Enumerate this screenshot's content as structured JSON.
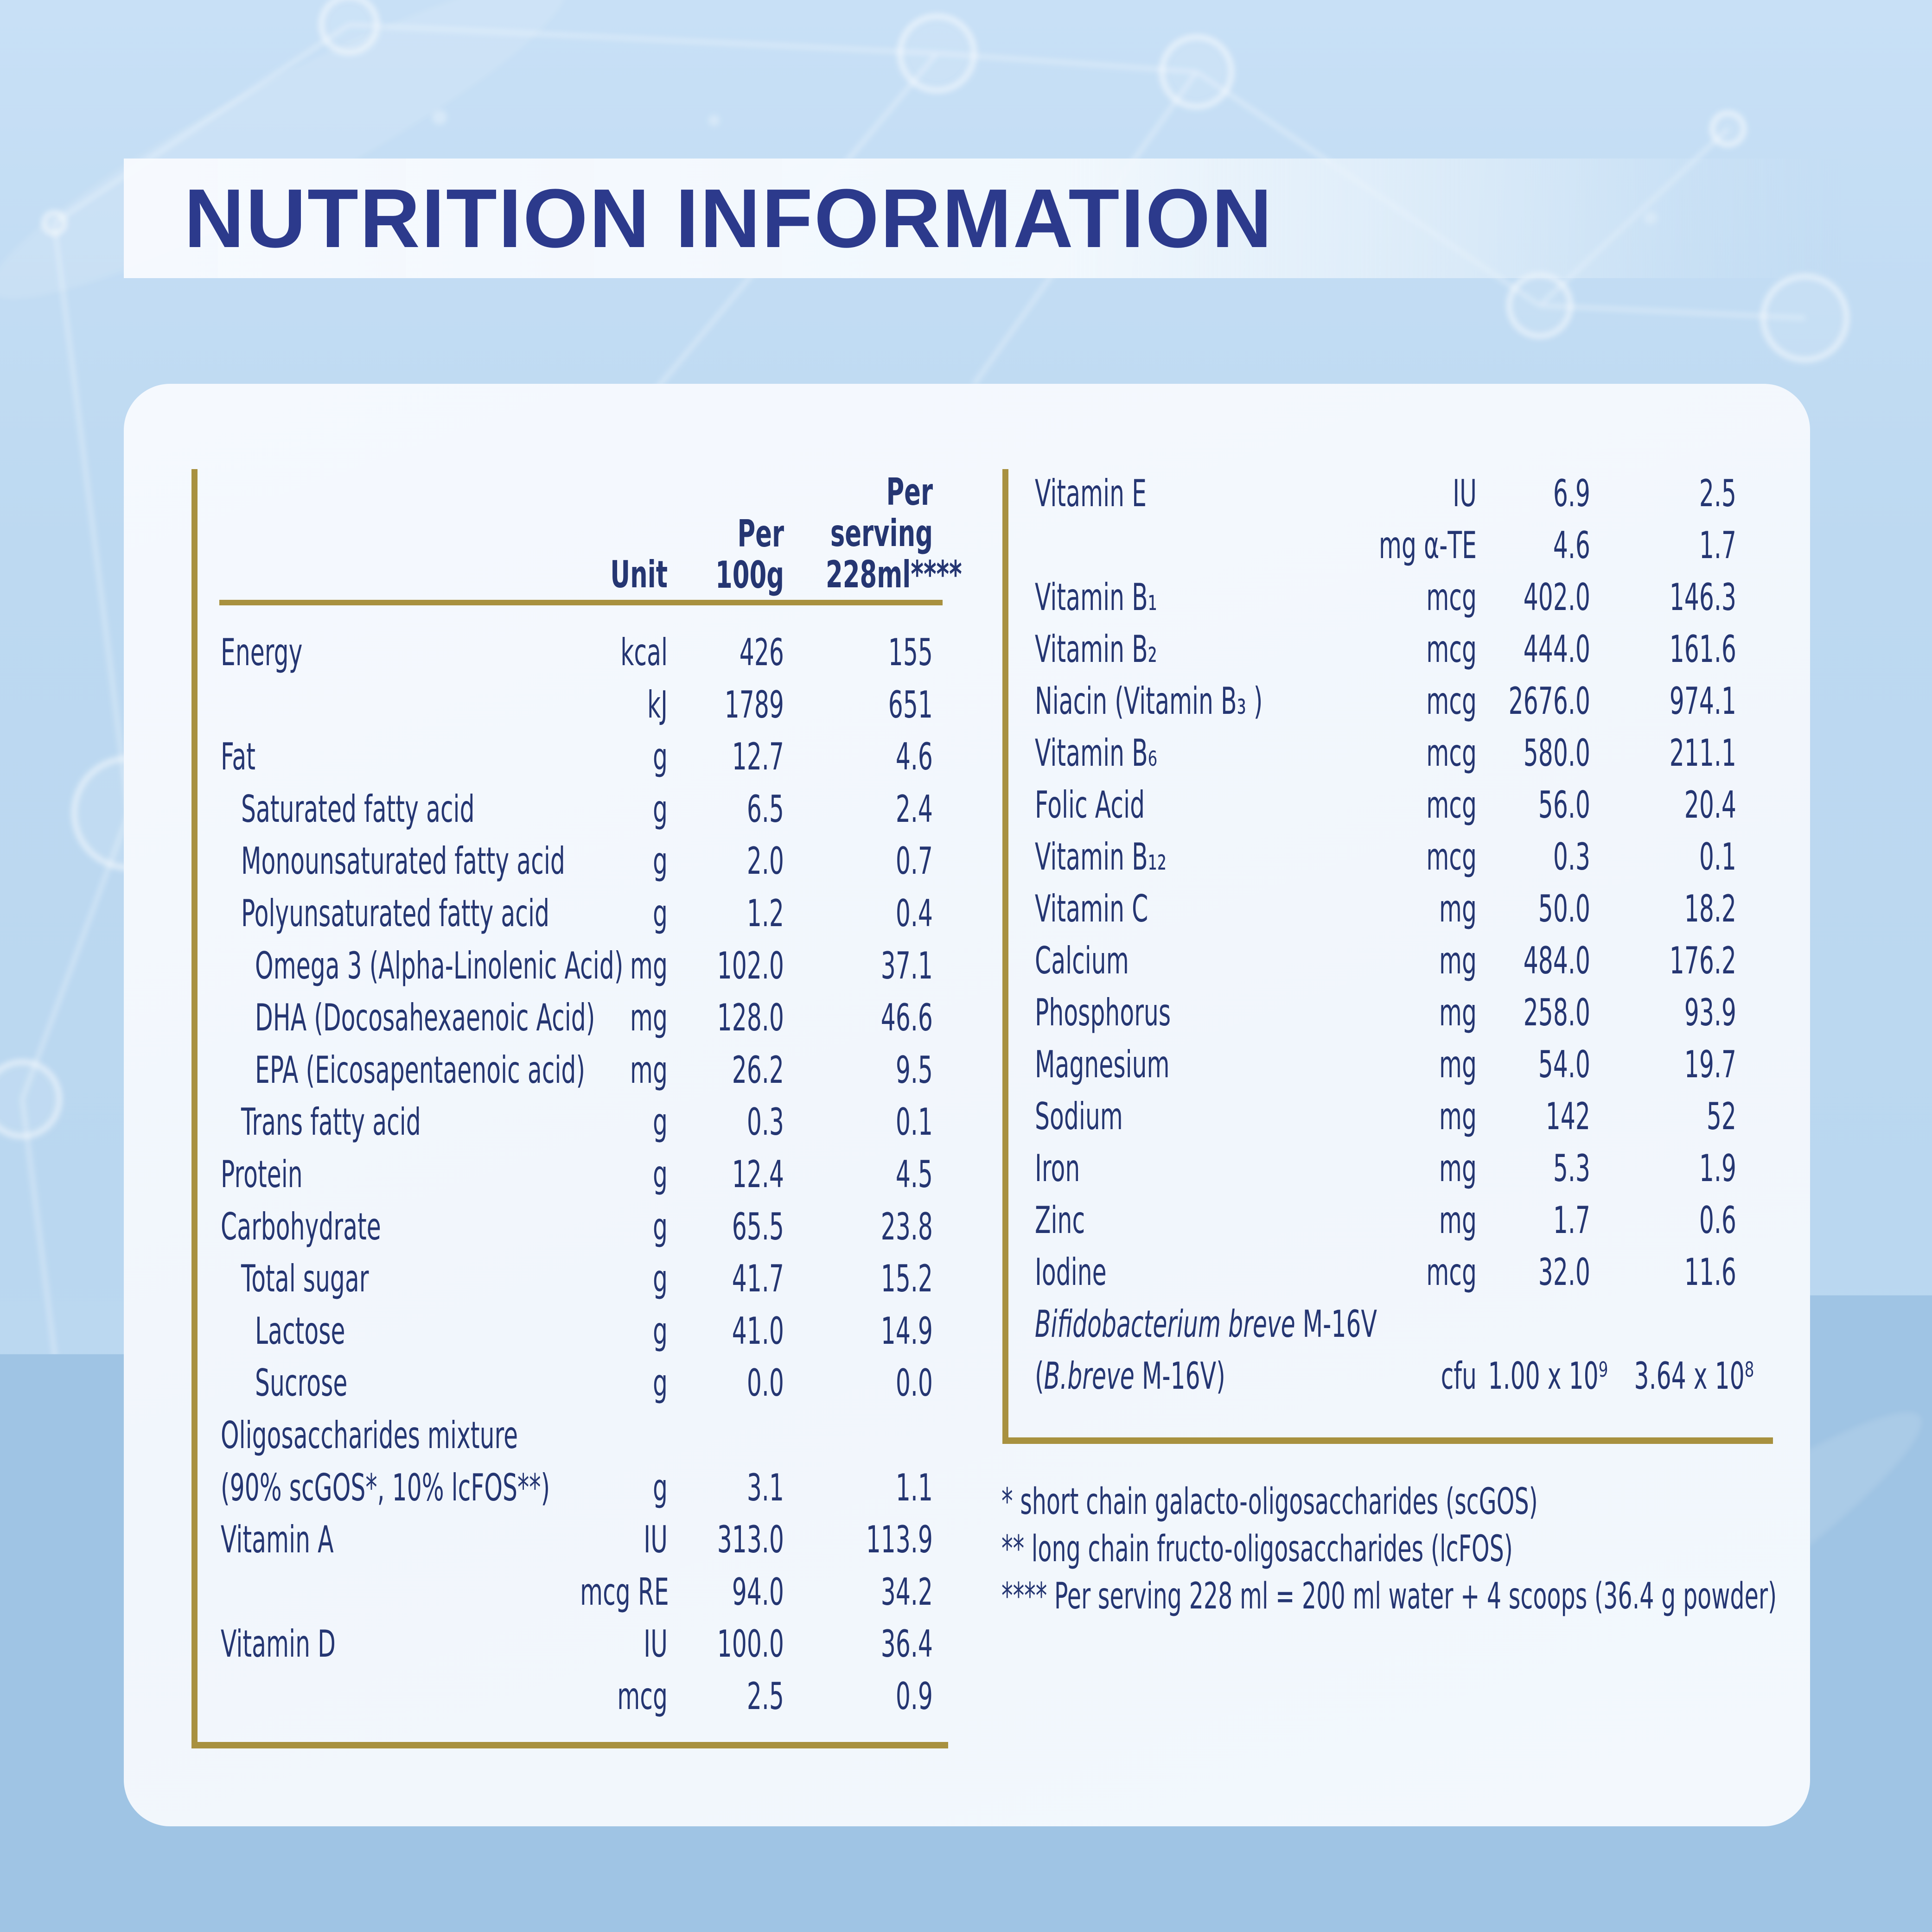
{
  "title": "NUTRITION INFORMATION",
  "colors": {
    "background": "#bdd9f1",
    "card": "#f2f7fc",
    "title_navy": "#2c3a8c",
    "text_navy": "#253672",
    "gold_rule": "#a8913f"
  },
  "table_left": {
    "header": {
      "unit": "Unit",
      "per_100g": "Per\n100g",
      "per_serving": "Per\nserving\n228ml****"
    },
    "rows": [
      {
        "l": "Energy",
        "ind": 0,
        "u": "kcal",
        "a": "426",
        "b": "155"
      },
      {
        "l": "",
        "ind": 0,
        "u": "kJ",
        "a": "1789",
        "b": "651"
      },
      {
        "l": "Fat",
        "ind": 0,
        "u": "g",
        "a": "12.7",
        "b": "4.6"
      },
      {
        "l": "Saturated fatty acid",
        "ind": 1,
        "u": "g",
        "a": "6.5",
        "b": "2.4"
      },
      {
        "l": "Monounsaturated fatty acid",
        "ind": 1,
        "u": "g",
        "a": "2.0",
        "b": "0.7"
      },
      {
        "l": "Polyunsaturated fatty acid",
        "ind": 1,
        "u": "g",
        "a": "1.2",
        "b": "0.4"
      },
      {
        "l": "Omega 3 (Alpha-Linolenic Acid)",
        "ind": 2,
        "u": "mg",
        "a": "102.0",
        "b": "37.1"
      },
      {
        "l": "DHA (Docosahexaenoic Acid)",
        "ind": 2,
        "u": "mg",
        "a": "128.0",
        "b": "46.6"
      },
      {
        "l": "EPA (Eicosapentaenoic acid)",
        "ind": 2,
        "u": "mg",
        "a": "26.2",
        "b": "9.5"
      },
      {
        "l": "Trans fatty acid",
        "ind": 1,
        "u": "g",
        "a": "0.3",
        "b": "0.1"
      },
      {
        "l": "Protein",
        "ind": 0,
        "u": "g",
        "a": "12.4",
        "b": "4.5"
      },
      {
        "l": "Carbohydrate",
        "ind": 0,
        "u": "g",
        "a": "65.5",
        "b": "23.8"
      },
      {
        "l": "Total sugar",
        "ind": 1,
        "u": "g",
        "a": "41.7",
        "b": "15.2"
      },
      {
        "l": "Lactose",
        "ind": 2,
        "u": "g",
        "a": "41.0",
        "b": "14.9"
      },
      {
        "l": "Sucrose",
        "ind": 2,
        "u": "g",
        "a": "0.0",
        "b": "0.0"
      },
      {
        "l": "Oligosaccharides mixture",
        "ind": 0
      },
      {
        "l": "(90% scGOS*, 10% lcFOS**)",
        "ind": 0,
        "u": "g",
        "a": "3.1",
        "b": "1.1"
      },
      {
        "l": "Vitamin A",
        "ind": 0,
        "u": "IU",
        "a": "313.0",
        "b": "113.9"
      },
      {
        "l": "",
        "ind": 0,
        "u": "mcg RE",
        "a": "94.0",
        "b": "34.2"
      },
      {
        "l": "Vitamin D",
        "ind": 0,
        "u": "IU",
        "a": "100.0",
        "b": "36.4"
      },
      {
        "l": "",
        "ind": 0,
        "u": "mcg",
        "a": "2.5",
        "b": "0.9"
      }
    ]
  },
  "table_right": {
    "rows": [
      {
        "l": "Vitamin E",
        "ind": 0,
        "u": "IU",
        "a": "6.9",
        "b": "2.5"
      },
      {
        "l": "",
        "ind": 0,
        "u": "mg α-TE",
        "a": "4.6",
        "b": "1.7"
      },
      {
        "l": "Vitamin B₁",
        "ind": 0,
        "u": "mcg",
        "a": "402.0",
        "b": "146.3"
      },
      {
        "l": "Vitamin B₂",
        "ind": 0,
        "u": "mcg",
        "a": "444.0",
        "b": "161.6"
      },
      {
        "l": "Niacin (Vitamin B₃ )",
        "ind": 0,
        "u": "mcg",
        "a": "2676.0",
        "b": "974.1"
      },
      {
        "l": "Vitamin B₆",
        "ind": 0,
        "u": "mcg",
        "a": "580.0",
        "b": "211.1"
      },
      {
        "l": "Folic Acid",
        "ind": 0,
        "u": "mcg",
        "a": "56.0",
        "b": "20.4"
      },
      {
        "l": "Vitamin B₁₂",
        "ind": 0,
        "u": "mcg",
        "a": "0.3",
        "b": "0.1"
      },
      {
        "l": "Vitamin C",
        "ind": 0,
        "u": "mg",
        "a": "50.0",
        "b": "18.2"
      },
      {
        "l": "Calcium",
        "ind": 0,
        "u": "mg",
        "a": "484.0",
        "b": "176.2"
      },
      {
        "l": "Phosphorus",
        "ind": 0,
        "u": "mg",
        "a": "258.0",
        "b": "93.9"
      },
      {
        "l": "Magnesium",
        "ind": 0,
        "u": "mg",
        "a": "54.0",
        "b": "19.7"
      },
      {
        "l": "Sodium",
        "ind": 0,
        "u": "mg",
        "a": "142",
        "b": "52"
      },
      {
        "l": "Iron",
        "ind": 0,
        "u": "mg",
        "a": "5.3",
        "b": "1.9"
      },
      {
        "l": "Zinc",
        "ind": 0,
        "u": "mg",
        "a": "1.7",
        "b": "0.6"
      },
      {
        "l": "Iodine",
        "ind": 0,
        "u": "mcg",
        "a": "32.0",
        "b": "11.6"
      },
      {
        "ind": 0,
        "parts": [
          {
            "t": "Bifidobacterium breve",
            "i": true
          },
          {
            "t": " M-16V",
            "i": false
          }
        ]
      },
      {
        "ind": 0,
        "parts": [
          {
            "t": "(",
            "i": false
          },
          {
            "t": "B.breve",
            "i": true
          },
          {
            "t": " M-16V)",
            "i": false
          }
        ],
        "u": "cfu",
        "a": "1.00 x 10⁹",
        "b": "3.64 x 10⁸"
      }
    ]
  },
  "footnotes": [
    "* short chain galacto-oligosaccharides (scGOS)",
    "** long chain fructo-oligosaccharides (lcFOS)",
    "**** Per serving 228 ml = 200 ml water + 4 scoops (36.4 g powder)"
  ]
}
